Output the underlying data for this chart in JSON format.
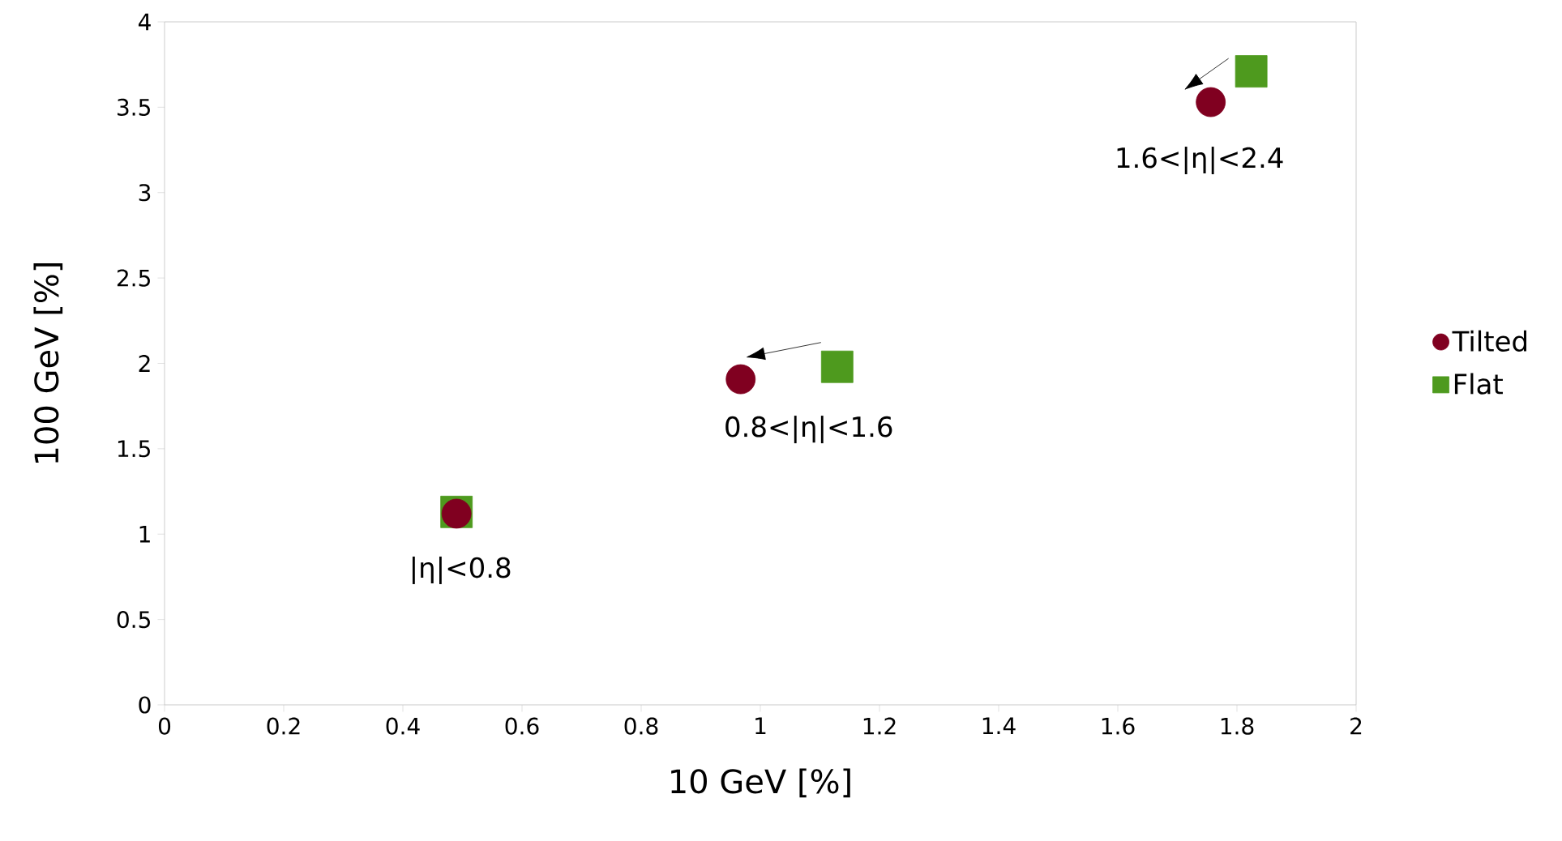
{
  "chart_data": {
    "type": "scatter",
    "xlabel": "10 GeV [%]",
    "ylabel": "100 GeV [%]",
    "xlim": [
      0,
      2
    ],
    "ylim": [
      0,
      4
    ],
    "xticks": [
      0,
      0.2,
      0.4,
      0.6,
      0.8,
      1,
      1.2,
      1.4,
      1.6,
      1.8,
      2
    ],
    "yticks": [
      0,
      0.5,
      1,
      1.5,
      2,
      2.5,
      3,
      3.5,
      4
    ],
    "legend": "right",
    "grid": false,
    "series": [
      {
        "name": "Tilted",
        "color": "#800020",
        "marker": "circle",
        "x": [
          0.49,
          0.967,
          1.756
        ],
        "values": [
          1.12,
          1.907,
          3.53
        ]
      },
      {
        "name": "Flat",
        "color": "#4e9a1e",
        "marker": "square",
        "x": [
          0.49,
          1.129,
          1.824
        ],
        "values": [
          1.13,
          1.98,
          3.71
        ]
      }
    ],
    "annotations": [
      "|η|<0.8",
      "0.8<|η|<1.6",
      "1.6<|η|<2.4"
    ]
  }
}
